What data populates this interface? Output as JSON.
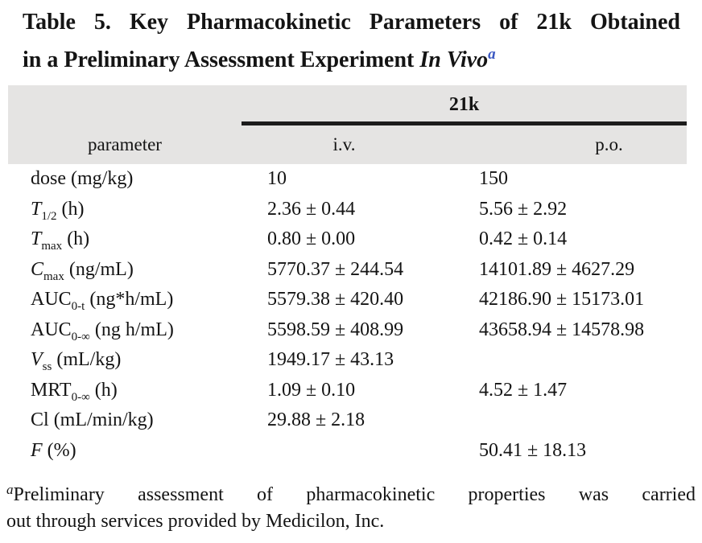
{
  "colors": {
    "header_band": "#e5e4e3",
    "superscript_blue": "#3b58c2",
    "text": "#141414"
  },
  "title": {
    "line1": "Table 5. Key Pharmacokinetic Parameters of 21k Obtained",
    "line2_regular": "in a Preliminary Assessment Experiment ",
    "line2_italic": "In Vivo",
    "superscript": "a"
  },
  "table": {
    "group_header": "21k",
    "column_headers": {
      "parameter": "parameter",
      "iv": "i.v.",
      "po": "p.o."
    },
    "rows": [
      {
        "param": {
          "base": "dose",
          "sub": "",
          "unit": " (mg/kg)",
          "italic": false
        },
        "iv": "10",
        "po": "150"
      },
      {
        "param": {
          "base": "T",
          "sub": "1/2",
          "unit": " (h)",
          "italic": true
        },
        "iv": "2.36 ± 0.44",
        "po": "5.56 ± 2.92"
      },
      {
        "param": {
          "base": "T",
          "sub": "max",
          "unit": " (h)",
          "italic": true
        },
        "iv": "0.80 ± 0.00",
        "po": "0.42 ± 0.14"
      },
      {
        "param": {
          "base": "C",
          "sub": "max",
          "unit": " (ng/mL)",
          "italic": true
        },
        "iv": "5770.37 ± 244.54",
        "po": "14101.89 ± 4627.29"
      },
      {
        "param": {
          "base": "AUC",
          "sub": "0-t",
          "unit": " (ng*h/mL)",
          "italic": false
        },
        "iv": "5579.38 ± 420.40",
        "po": "42186.90 ± 15173.01"
      },
      {
        "param": {
          "base": "AUC",
          "sub": "0-∞",
          "unit": " (ng h/mL)",
          "italic": false
        },
        "iv": "5598.59 ± 408.99",
        "po": "43658.94 ± 14578.98"
      },
      {
        "param": {
          "base": "V",
          "sub": "ss",
          "unit": " (mL/kg)",
          "italic": true
        },
        "iv": "1949.17 ± 43.13",
        "po": ""
      },
      {
        "param": {
          "base": "MRT",
          "sub": "0-∞",
          "unit": " (h)",
          "italic": false
        },
        "iv": "1.09 ± 0.10",
        "po": "4.52 ± 1.47"
      },
      {
        "param": {
          "base": "Cl",
          "sub": "",
          "unit": " (mL/min/kg)",
          "italic": false
        },
        "iv": "29.88 ± 2.18",
        "po": ""
      },
      {
        "param": {
          "base": "F",
          "sub": "",
          "unit": " (%)",
          "italic": true
        },
        "iv": "",
        "po": "50.41 ± 18.13"
      }
    ]
  },
  "footnote": {
    "marker": "a",
    "line1": "Preliminary assessment of pharmacokinetic properties was carried",
    "line2": "out through services provided by Medicilon, Inc."
  }
}
